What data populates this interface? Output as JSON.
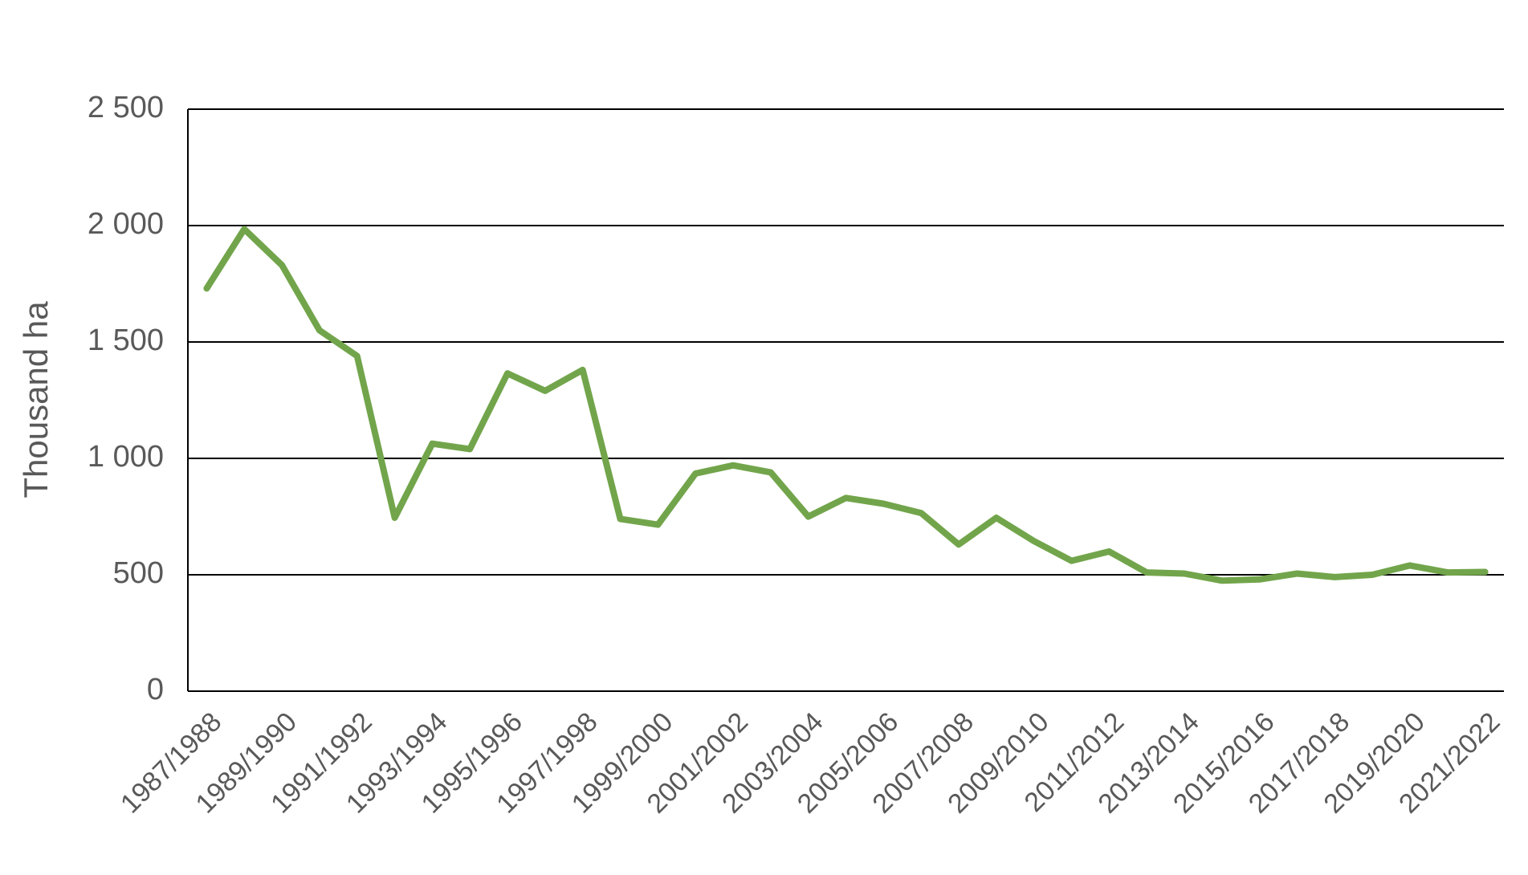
{
  "chart_data": {
    "type": "line",
    "y_label": "Thousand ha",
    "categories": [
      "1987/1988",
      null,
      "1989/1990",
      null,
      "1991/1992",
      null,
      "1993/1994",
      null,
      "1995/1996",
      null,
      "1997/1998",
      null,
      "1999/2000",
      null,
      "2001/2002",
      null,
      "2003/2004",
      null,
      "2005/2006",
      null,
      "2007/2008",
      null,
      "2009/2010",
      null,
      "2011/2012",
      null,
      "2013/2014",
      null,
      "2015/2016",
      null,
      "2017/2018",
      null,
      "2019/2020",
      null,
      "2021/2022"
    ],
    "values": [
      1730,
      1985,
      1830,
      1550,
      1440,
      745,
      1063,
      1040,
      1365,
      1290,
      1380,
      740,
      715,
      935,
      970,
      940,
      750,
      830,
      805,
      765,
      630,
      745,
      645,
      560,
      600,
      510,
      505,
      475,
      480,
      505,
      490,
      500,
      540,
      510,
      512
    ],
    "color": "#72a54b",
    "ylim": [
      0,
      2500
    ],
    "yticks": [
      0,
      500,
      {
        "value": 1000,
        "label": "1 000"
      },
      {
        "value": 1500,
        "label": "1 500"
      },
      {
        "value": 2000,
        "label": "2 000"
      },
      {
        "value": 2500,
        "label": "2 500"
      }
    ],
    "grid": true
  }
}
